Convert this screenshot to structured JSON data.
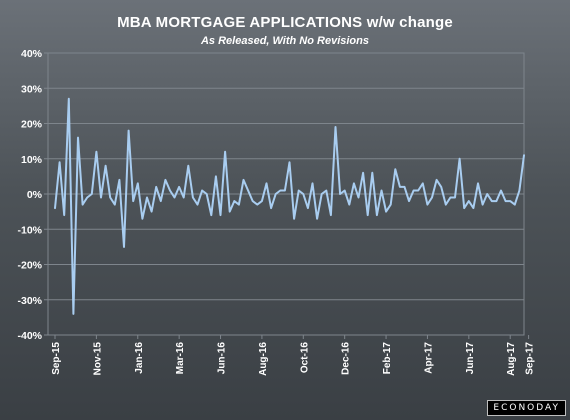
{
  "header": {
    "title": "MBA MORTGAGE APPLICATIONS w/w change",
    "subtitle": "As Released, With No Revisions"
  },
  "footer": {
    "logo_text": "ECONODAY"
  },
  "colors": {
    "line": "#a9cdf0",
    "grid": "#7e858c",
    "text": "#ffffff"
  },
  "chart_data": {
    "type": "line",
    "xlabel": "",
    "ylabel": "",
    "ylim": [
      -40,
      40
    ],
    "yticks": [
      -40,
      -30,
      -20,
      -10,
      0,
      10,
      20,
      30,
      40
    ],
    "ytick_labels": [
      "-40%",
      "-30%",
      "-20%",
      "-10%",
      "0%",
      "10%",
      "20%",
      "30%",
      "40%"
    ],
    "xtick_labels": [
      {
        "label": "Sep-15",
        "index": 0
      },
      {
        "label": "Nov-15",
        "index": 9
      },
      {
        "label": "Jan-16",
        "index": 18
      },
      {
        "label": "Mar-16",
        "index": 27
      },
      {
        "label": "Jun-16",
        "index": 36
      },
      {
        "label": "Aug-16",
        "index": 45
      },
      {
        "label": "Oct-16",
        "index": 54
      },
      {
        "label": "Dec-16",
        "index": 63
      },
      {
        "label": "Feb-17",
        "index": 72
      },
      {
        "label": "Apr-17",
        "index": 81
      },
      {
        "label": "Jun-17",
        "index": 90
      },
      {
        "label": "Aug-17",
        "index": 99
      },
      {
        "label": "Sep-17",
        "index": 103
      }
    ],
    "grid": true,
    "legend": "none",
    "series": [
      {
        "values": [
          -4,
          9,
          -6,
          27,
          -34,
          16,
          -3,
          -1,
          0,
          12,
          -1,
          8,
          -1,
          -3,
          4,
          -15,
          18,
          -2,
          3,
          -7,
          -1,
          -5,
          2,
          -2,
          4,
          1,
          -1,
          2,
          -1,
          8,
          -1,
          -3,
          1,
          0,
          -6,
          5,
          -6,
          12,
          -5,
          -2,
          -3,
          4,
          1,
          -2,
          -3,
          -2,
          3,
          -4,
          0,
          1,
          1,
          9,
          -7,
          1,
          0,
          -4,
          3,
          -7,
          0,
          1,
          -6,
          19,
          0,
          1,
          -3,
          3,
          -1,
          6,
          -6,
          6,
          -6,
          1,
          -5,
          -3,
          7,
          2,
          2,
          -2,
          1,
          1,
          3,
          -3,
          -1,
          4,
          2,
          -3,
          -1,
          -1,
          10,
          -4,
          -2,
          -4,
          3,
          -3,
          0,
          -2,
          -2,
          1,
          -2,
          -2,
          -3,
          1,
          11
        ]
      }
    ]
  }
}
